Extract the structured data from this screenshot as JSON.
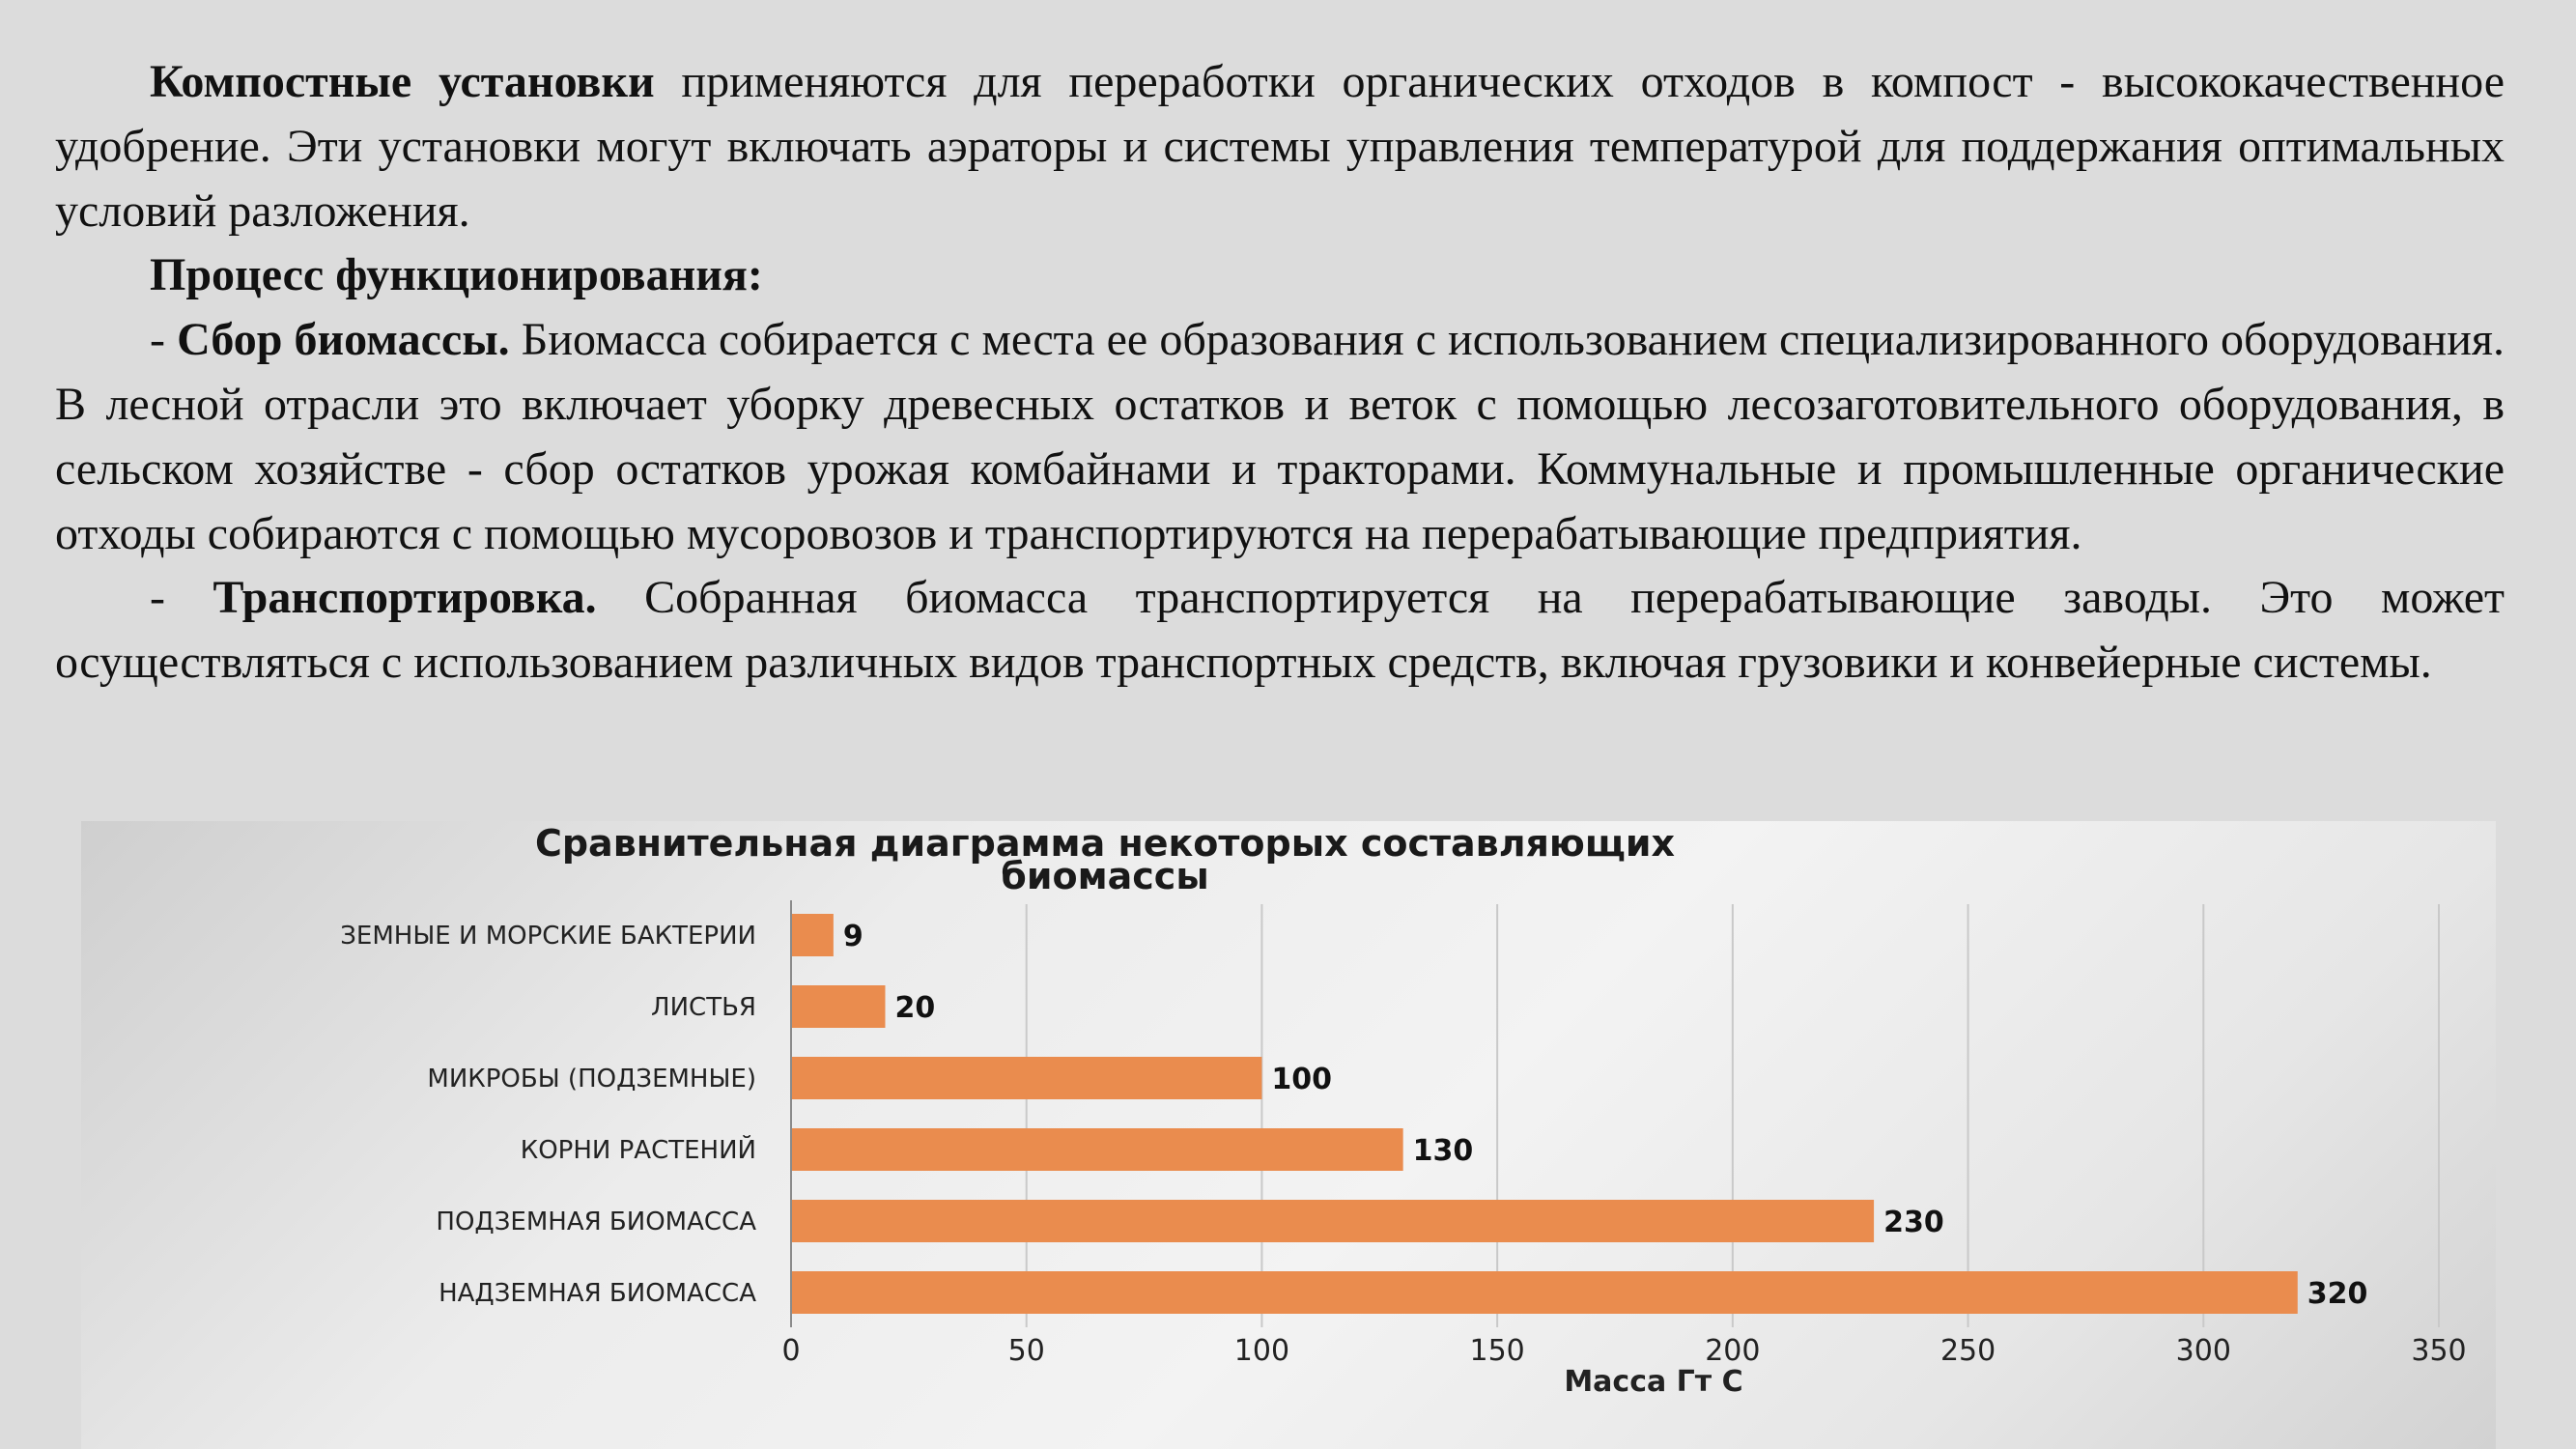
{
  "document": {
    "paragraphs": [
      {
        "bold_lead": "Компостные установки",
        "text": " применяются для переработки органических отходов в компост - высококачественное удобрение. Эти установки могут включать аэраторы и системы управления температурой для поддержания оптимальных условий разложения."
      },
      {
        "bold_lead": "Процесс функционирования:",
        "text": ""
      },
      {
        "prefix": "- ",
        "bold_lead": "Сбор биомассы.",
        "text": " Биомасса собирается с места ее образования с использованием специализированного оборудования. В лесной отрасли это включает уборку древесных остатков и веток с помощью лесозаготовительного оборудования, в сельском хозяйстве - сбор остатков урожая комбайнами и тракторами. Коммунальные и промышленные органические отходы собираются с помощью мусоровозов и транспортируются на перерабатывающие предприятия."
      },
      {
        "prefix": "- ",
        "bold_lead": "Транспортировка.",
        "text": " Собранная биомасса транспортируется на перерабатывающие заводы. Это может осуществляться с использованием различных видов транспортных средств, включая грузовики и конвейерные системы."
      }
    ]
  },
  "chart_data": {
    "type": "bar",
    "orientation": "horizontal",
    "title": "Сравнительная диаграмма некоторых составляющих биомассы",
    "title_lines": [
      "Сравнительная диаграмма некоторых составляющих",
      "биомассы"
    ],
    "categories": [
      "ЗЕМНЫЕ И МОРСКИЕ БАКТЕРИИ",
      "ЛИСТЬЯ",
      "МИКРОБЫ (ПОДЗЕМНЫЕ)",
      "КОРНИ РАСТЕНИЙ",
      "ПОДЗЕМНАЯ БИОМАССА",
      "НАДЗЕМНАЯ БИОМАССА"
    ],
    "values": [
      9,
      20,
      100,
      130,
      230,
      320
    ],
    "value_labels": [
      "9",
      "20",
      "100",
      "130",
      "230",
      "320"
    ],
    "xlabel": "Масса Гт С",
    "ylabel": "",
    "xlim": [
      0,
      350
    ],
    "ticks": [
      "0",
      "50",
      "100",
      "150",
      "200",
      "250",
      "300",
      "350"
    ],
    "grid": "vertical",
    "bar_color": "#ea8c4e"
  }
}
